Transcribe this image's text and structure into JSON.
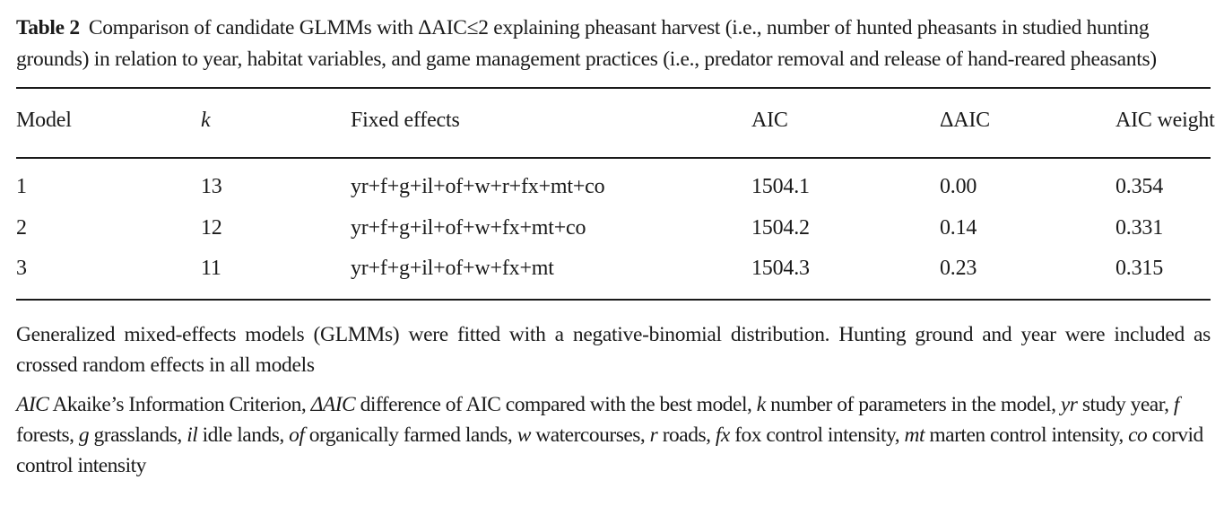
{
  "caption": {
    "label": "Table 2",
    "text": "Comparison of candidate GLMMs with ΔAIC≤2 explaining pheasant harvest (i.e., number of hunted pheasants in studied hunting grounds) in relation to year, habitat variables, and game management practices (i.e., predator removal and release of hand-reared pheasants)"
  },
  "table": {
    "headers": {
      "model": "Model",
      "k": "k",
      "fixed_effects": "Fixed effects",
      "aic": "AIC",
      "delta_aic": "ΔAIC",
      "aic_weight": "AIC weight"
    },
    "rows": [
      {
        "model": "1",
        "k": "13",
        "fixed_effects": "yr+f+g+il+of+w+r+fx+mt+co",
        "aic": "1504.1",
        "delta_aic": "0.00",
        "aic_weight": "0.354"
      },
      {
        "model": "2",
        "k": "12",
        "fixed_effects": "yr+f+g+il+of+w+fx+mt+co",
        "aic": "1504.2",
        "delta_aic": "0.14",
        "aic_weight": "0.331"
      },
      {
        "model": "3",
        "k": "11",
        "fixed_effects": "yr+f+g+il+of+w+fx+mt",
        "aic": "1504.3",
        "delta_aic": "0.23",
        "aic_weight": "0.315"
      }
    ]
  },
  "footnotes": {
    "note": "Generalized mixed-effects models (GLMMs) were fitted with a negative-binomial distribution. Hunting ground and year were included as crossed random effects in all models",
    "abbreviations": [
      {
        "abbr": "AIC",
        "def": "Akaike’s Information Criterion,"
      },
      {
        "abbr": "ΔAIC",
        "def": "difference of AIC compared with the best model,"
      },
      {
        "abbr": "k",
        "def": "number of parameters in the model,"
      },
      {
        "abbr": "yr",
        "def": "study year,"
      },
      {
        "abbr": "f",
        "def": "forests,"
      },
      {
        "abbr": "g",
        "def": "grasslands,"
      },
      {
        "abbr": "il",
        "def": "idle lands,"
      },
      {
        "abbr": "of",
        "def": "organically farmed lands,"
      },
      {
        "abbr": "w",
        "def": "watercourses,"
      },
      {
        "abbr": "r",
        "def": "roads,"
      },
      {
        "abbr": "fx",
        "def": "fox control intensity,"
      },
      {
        "abbr": "mt",
        "def": "marten control intensity,"
      },
      {
        "abbr": "co",
        "def": "corvid control intensity"
      }
    ]
  }
}
